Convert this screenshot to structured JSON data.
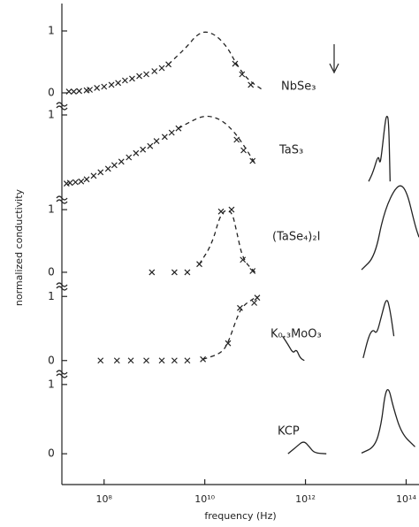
{
  "shared": {
    "ylabel": "normalized conductivity",
    "xlabel": "frequency (Hz)",
    "xscale": "log",
    "xlim": [
      14500000.0,
      180000000000000.0
    ],
    "xticks": [
      {
        "value": 100000000.0,
        "label": "10⁸"
      },
      {
        "value": 10000000000.0,
        "label": "10¹⁰"
      },
      {
        "value": 1000000000000.0,
        "label": "10¹²"
      },
      {
        "value": 100000000000000.0,
        "label": "10¹⁴"
      }
    ]
  },
  "chart_data": [
    {
      "type": "line",
      "label": "NbSe₃",
      "ylim": [
        -0.1,
        1.1
      ],
      "yticks": [
        0,
        1
      ],
      "color": "#222",
      "series": [
        {
          "style": "cross",
          "x": [
            20000000.0,
            25000000.0,
            32000000.0,
            45000000.0,
            52000000.0,
            72000000.0,
            100000000.0,
            140000000.0,
            190000000.0,
            260000000.0,
            360000000.0,
            500000000.0,
            690000000.0,
            1000000000.0,
            1400000000.0,
            1900000000.0,
            40000000000.0,
            55000000000.0,
            82000000000.0
          ],
          "values": [
            0.02,
            0.02,
            0.03,
            0.04,
            0.05,
            0.08,
            0.1,
            0.13,
            0.16,
            0.2,
            0.23,
            0.27,
            0.3,
            0.35,
            0.4,
            0.46,
            0.47,
            0.3,
            0.13
          ]
        },
        {
          "style": "dashed",
          "x": [
            1900000000.0,
            4500000000.0,
            6600000000.0,
            10000000000.0,
            17000000000.0,
            29000000000.0,
            40000000000.0,
            69000000000.0,
            140000000000.0
          ],
          "values": [
            0.46,
            0.75,
            0.92,
            1.0,
            0.93,
            0.72,
            0.5,
            0.22,
            0.05
          ]
        }
      ]
    },
    {
      "type": "line",
      "label": "TaS₃",
      "ylim": [
        -0.1,
        1.1
      ],
      "yticks": [
        1
      ],
      "color": "#222",
      "series": [
        {
          "style": "cross",
          "x": [
            18000000.0,
            21000000.0,
            27000000.0,
            35000000.0,
            45000000.0,
            62000000.0,
            85000000.0,
            120000000.0,
            160000000.0,
            220000000.0,
            310000000.0,
            430000000.0,
            590000000.0,
            820000000.0,
            1100000000.0,
            1600000000.0,
            2200000000.0,
            3000000000.0,
            43000000000.0,
            59000000000.0,
            89000000000.0
          ],
          "values": [
            0.03,
            0.04,
            0.05,
            0.06,
            0.09,
            0.14,
            0.19,
            0.24,
            0.29,
            0.34,
            0.4,
            0.46,
            0.51,
            0.56,
            0.63,
            0.69,
            0.75,
            0.81,
            0.65,
            0.5,
            0.35
          ]
        },
        {
          "style": "dashed",
          "x": [
            3000000000.0,
            5000000000.0,
            10000000000.0,
            21000000000.0,
            40000000000.0,
            69000000000.0,
            100000000000.0
          ],
          "values": [
            0.81,
            0.9,
            1.0,
            0.94,
            0.75,
            0.5,
            0.31
          ]
        },
        {
          "style": "solid",
          "x": [
            18000000000000.0,
            22000000000000.0,
            28000000000000.0,
            30000000000000.0,
            32000000000000.0,
            38000000000000.0,
            41000000000000.0,
            45000000000000.0,
            48000000000000.0
          ],
          "values": [
            0.06,
            0.19,
            0.44,
            0.31,
            0.4,
            0.88,
            1.0,
            0.94,
            0.06
          ]
        }
      ]
    },
    {
      "type": "line",
      "label": "(TaSe₄)₂I",
      "ylim": [
        -0.1,
        1.1
      ],
      "yticks": [
        0,
        1
      ],
      "color": "#222",
      "series": [
        {
          "style": "cross",
          "x": [
            890000000.0,
            2500000000.0,
            4500000000.0,
            7800000000.0,
            21000000000.0,
            34000000000.0,
            57000000000.0,
            89000000000.0
          ],
          "values": [
            0,
            0,
            0,
            0.13,
            0.97,
            1.0,
            0.2,
            0.02
          ]
        },
        {
          "style": "dashed",
          "x": [
            7800000000.0,
            14000000000.0,
            21000000000.0,
            34000000000.0,
            43000000000.0,
            57000000000.0,
            100000000000.0
          ],
          "values": [
            0.13,
            0.45,
            0.97,
            1.0,
            0.65,
            0.2,
            0
          ]
        },
        {
          "style": "solid",
          "x": [
            13000000000000.0,
            24000000000000.0,
            36000000000000.0,
            66000000000000.0,
            100000000000000.0,
            150000000000000.0,
            180000000000000.0
          ],
          "values": [
            0.04,
            0.25,
            0.96,
            1.41,
            1.34,
            0.75,
            0.56
          ]
        }
      ]
    },
    {
      "type": "line",
      "label": "K₀.₃MoO₃",
      "ylim": [
        -0.1,
        1.1
      ],
      "yticks": [
        0,
        1
      ],
      "color": "#222",
      "series": [
        {
          "style": "cross",
          "x": [
            85000000.0,
            180000000.0,
            340000000.0,
            690000000.0,
            1400000000.0,
            2500000000.0,
            4500000000.0,
            9200000000.0,
            29000000000.0,
            50000000000.0,
            96000000000.0,
            110000000000.0
          ],
          "values": [
            0,
            0,
            0,
            0,
            0,
            0,
            0,
            0.02,
            0.27,
            0.82,
            0.9,
            0.98
          ]
        },
        {
          "style": "dashed",
          "x": [
            9200000000.0,
            21000000000.0,
            29000000000.0,
            43000000000.0,
            57000000000.0,
            110000000000.0
          ],
          "values": [
            0.02,
            0.11,
            0.27,
            0.66,
            0.86,
            1.0
          ]
        },
        {
          "style": "solid",
          "x": [
            350000000000.0,
            450000000000.0,
            570000000000.0,
            660000000000.0,
            780000000000.0,
            950000000000.0
          ],
          "values": [
            0.38,
            0.25,
            0.11,
            0.18,
            0.04,
            0
          ]
        },
        {
          "style": "solid",
          "x": [
            14000000000000.0,
            18000000000000.0,
            22000000000000.0,
            26000000000000.0,
            32000000000000.0,
            41000000000000.0,
            48000000000000.0,
            57000000000000.0
          ],
          "values": [
            0.04,
            0.38,
            0.49,
            0.41,
            0.68,
            1.0,
            0.79,
            0.38
          ]
        }
      ]
    },
    {
      "type": "line",
      "label": "KCP",
      "ylim": [
        -0.1,
        1.1
      ],
      "yticks": [
        0,
        1
      ],
      "color": "#222",
      "series": [
        {
          "style": "solid",
          "x": [
            450000000000.0,
            660000000000.0,
            920000000000.0,
            1200000000000.0,
            1500000000000.0,
            2600000000000.0
          ],
          "values": [
            0,
            0.1,
            0.19,
            0.1,
            0.01,
            0
          ]
        },
        {
          "style": "solid",
          "x": [
            13000000000000.0,
            24000000000000.0,
            32000000000000.0,
            38000000000000.0,
            45000000000000.0,
            55000000000000.0,
            81000000000000.0,
            150000000000000.0
          ],
          "values": [
            0.01,
            0.1,
            0.42,
            0.87,
            0.96,
            0.68,
            0.29,
            0.1
          ]
        }
      ]
    }
  ]
}
